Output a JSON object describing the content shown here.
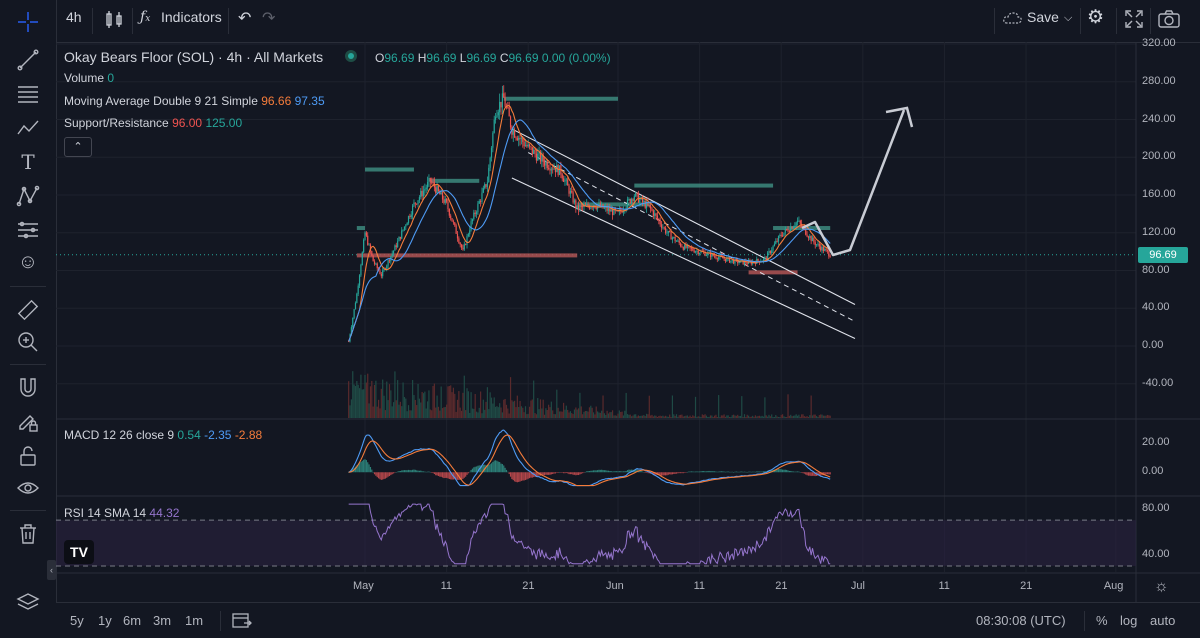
{
  "toolbar": {
    "interval": "4h",
    "indicators_label": "Indicators",
    "save_label": "Save"
  },
  "legend": {
    "symbol": "Okay Bears Floor (SOL)",
    "interval": "4h",
    "market": "All Markets",
    "ohlc": {
      "o_label": "O",
      "o": "96.69",
      "h_label": "H",
      "h": "96.69",
      "l_label": "L",
      "l": "96.69",
      "c_label": "C",
      "c": "96.69",
      "change": "0.00 (0.00%)"
    },
    "volume_label": "Volume",
    "volume_value": "0",
    "ma_label": "Moving Average Double 9 21 Simple",
    "ma_fast": "96.66",
    "ma_slow": "97.35",
    "sr_label": "Support/Resistance",
    "sr_support": "96.00",
    "sr_resistance": "125.00",
    "macd_label": "MACD 12 26 close 9",
    "macd_hist": "0.54",
    "macd_line": "-2.35",
    "macd_signal": "-2.88",
    "rsi_label": "RSI 14 SMA 14",
    "rsi_value": "44.32"
  },
  "price_tag": "96.69",
  "bottom": {
    "ranges": [
      "5y",
      "1y",
      "6m",
      "3m",
      "1m"
    ],
    "clock": "08:30:08 (UTC)",
    "percent": "%",
    "log": "log",
    "auto": "auto"
  },
  "colors": {
    "up": "#26a69a",
    "down": "#ef5350",
    "ma_fast": "#f57c3b",
    "ma_slow": "#4e9bf5",
    "rsi": "#9575cd"
  },
  "chart_data": {
    "type": "line",
    "x_labels": [
      "May",
      "11",
      "21",
      "Jun",
      "11",
      "21",
      "Jul",
      "11",
      "21",
      "Aug"
    ],
    "y_ticks": [
      "320.00",
      "280.00",
      "240.00",
      "200.00",
      "160.00",
      "120.00",
      "80.00",
      "40.00",
      "0.00",
      "-40.00"
    ],
    "ylim": [
      -40,
      320
    ],
    "price_series": [
      {
        "date": "04-29",
        "value": 5
      },
      {
        "date": "04-30",
        "value": 55
      },
      {
        "date": "05-01",
        "value": 120
      },
      {
        "date": "05-02",
        "value": 90
      },
      {
        "date": "05-03",
        "value": 75
      },
      {
        "date": "05-05",
        "value": 110
      },
      {
        "date": "05-07",
        "value": 150
      },
      {
        "date": "05-09",
        "value": 175
      },
      {
        "date": "05-11",
        "value": 150
      },
      {
        "date": "05-13",
        "value": 100
      },
      {
        "date": "05-14",
        "value": 130
      },
      {
        "date": "05-16",
        "value": 175
      },
      {
        "date": "05-17",
        "value": 250
      },
      {
        "date": "05-18",
        "value": 262
      },
      {
        "date": "05-19",
        "value": 230
      },
      {
        "date": "05-21",
        "value": 210
      },
      {
        "date": "05-23",
        "value": 195
      },
      {
        "date": "05-25",
        "value": 185
      },
      {
        "date": "05-27",
        "value": 145
      },
      {
        "date": "05-29",
        "value": 150
      },
      {
        "date": "06-01",
        "value": 140
      },
      {
        "date": "06-03",
        "value": 160
      },
      {
        "date": "06-05",
        "value": 145
      },
      {
        "date": "06-07",
        "value": 120
      },
      {
        "date": "06-09",
        "value": 105
      },
      {
        "date": "06-11",
        "value": 100
      },
      {
        "date": "06-13",
        "value": 95
      },
      {
        "date": "06-15",
        "value": 90
      },
      {
        "date": "06-17",
        "value": 88
      },
      {
        "date": "06-19",
        "value": 92
      },
      {
        "date": "06-21",
        "value": 118
      },
      {
        "date": "06-23",
        "value": 132
      },
      {
        "date": "06-25",
        "value": 110
      },
      {
        "date": "06-27",
        "value": 96.69
      }
    ],
    "support_resistance": [
      {
        "level": 125,
        "from": "04-30",
        "to": "05-01"
      },
      {
        "level": 187,
        "from": "05-01",
        "to": "05-07"
      },
      {
        "level": 175,
        "from": "05-09",
        "to": "05-15"
      },
      {
        "level": 262,
        "from": "05-18",
        "to": "06-01"
      },
      {
        "level": 170,
        "from": "06-03",
        "to": "06-20"
      },
      {
        "level": 150,
        "from": "05-27",
        "to": "06-05"
      },
      {
        "level": 125,
        "from": "06-20",
        "to": "06-27"
      },
      {
        "level": 96,
        "from": "04-30",
        "to": "05-27"
      },
      {
        "level": 78,
        "from": "06-17",
        "to": "06-23"
      }
    ],
    "macd": {
      "y_ticks": [
        "20.00",
        "0.00"
      ],
      "ylim": [
        -10,
        30
      ]
    },
    "rsi": {
      "y_ticks": [
        "80.00",
        "40.00"
      ],
      "ylim": [
        30,
        85
      ],
      "upper": 70,
      "lower": 30
    }
  }
}
